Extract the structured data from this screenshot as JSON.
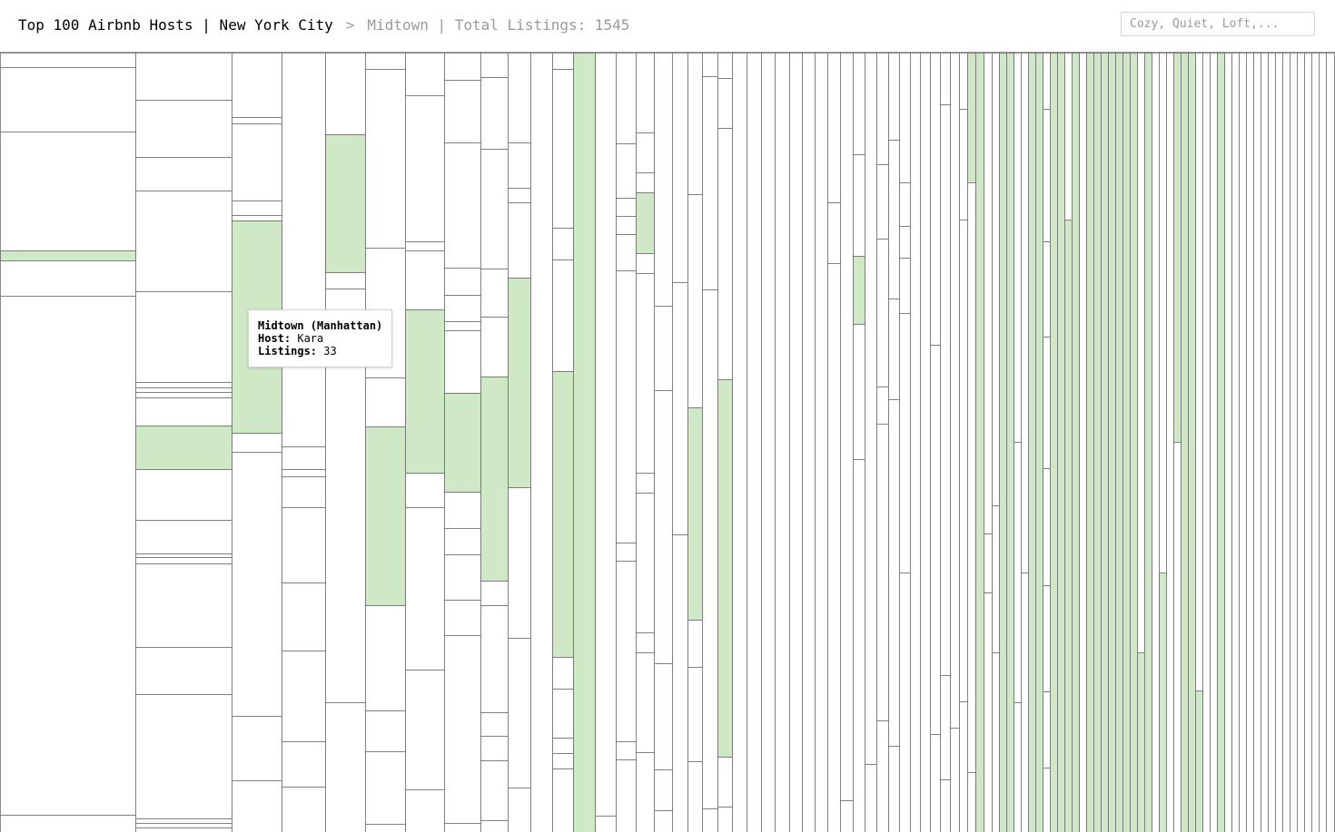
{
  "header": {
    "title": "Top 100 Airbnb Hosts | New York City",
    "separator": ">",
    "subtitle": "Midtown | Total Listings: 1545"
  },
  "search": {
    "placeholder": "Cozy, Quiet, Loft,..."
  },
  "tooltip": {
    "title": "Midtown (Manhattan)",
    "host_label": "Host:",
    "host_value": "Kara",
    "listings_label": "Listings:",
    "listings_value": "33"
  },
  "colors": {
    "highlight": "#cfe8c6",
    "stroke": "#6f6f6f"
  }
}
